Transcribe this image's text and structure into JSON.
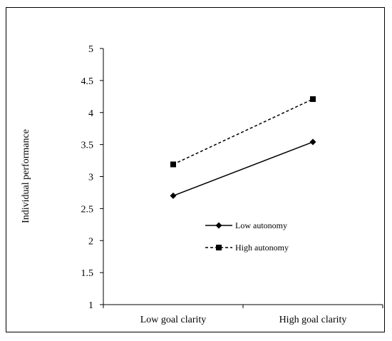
{
  "chart_data": {
    "type": "line",
    "categories": [
      "Low goal clarity",
      "High goal clarity"
    ],
    "ylabel": "Individual performance",
    "xlabel": "",
    "ylim": [
      1,
      5
    ],
    "yticks": [
      "1",
      "1.5",
      "2",
      "2.5",
      "3",
      "3.5",
      "4",
      "4.5",
      "5"
    ],
    "grid": false,
    "legend_position": "center",
    "series": [
      {
        "name": "Low autonomy",
        "values": [
          2.7,
          3.54
        ],
        "marker": "diamond",
        "line_style": "solid",
        "color": "#000000"
      },
      {
        "name": "High autonomy",
        "values": [
          3.19,
          4.21
        ],
        "marker": "square",
        "line_style": "dashed",
        "color": "#000000"
      }
    ]
  }
}
